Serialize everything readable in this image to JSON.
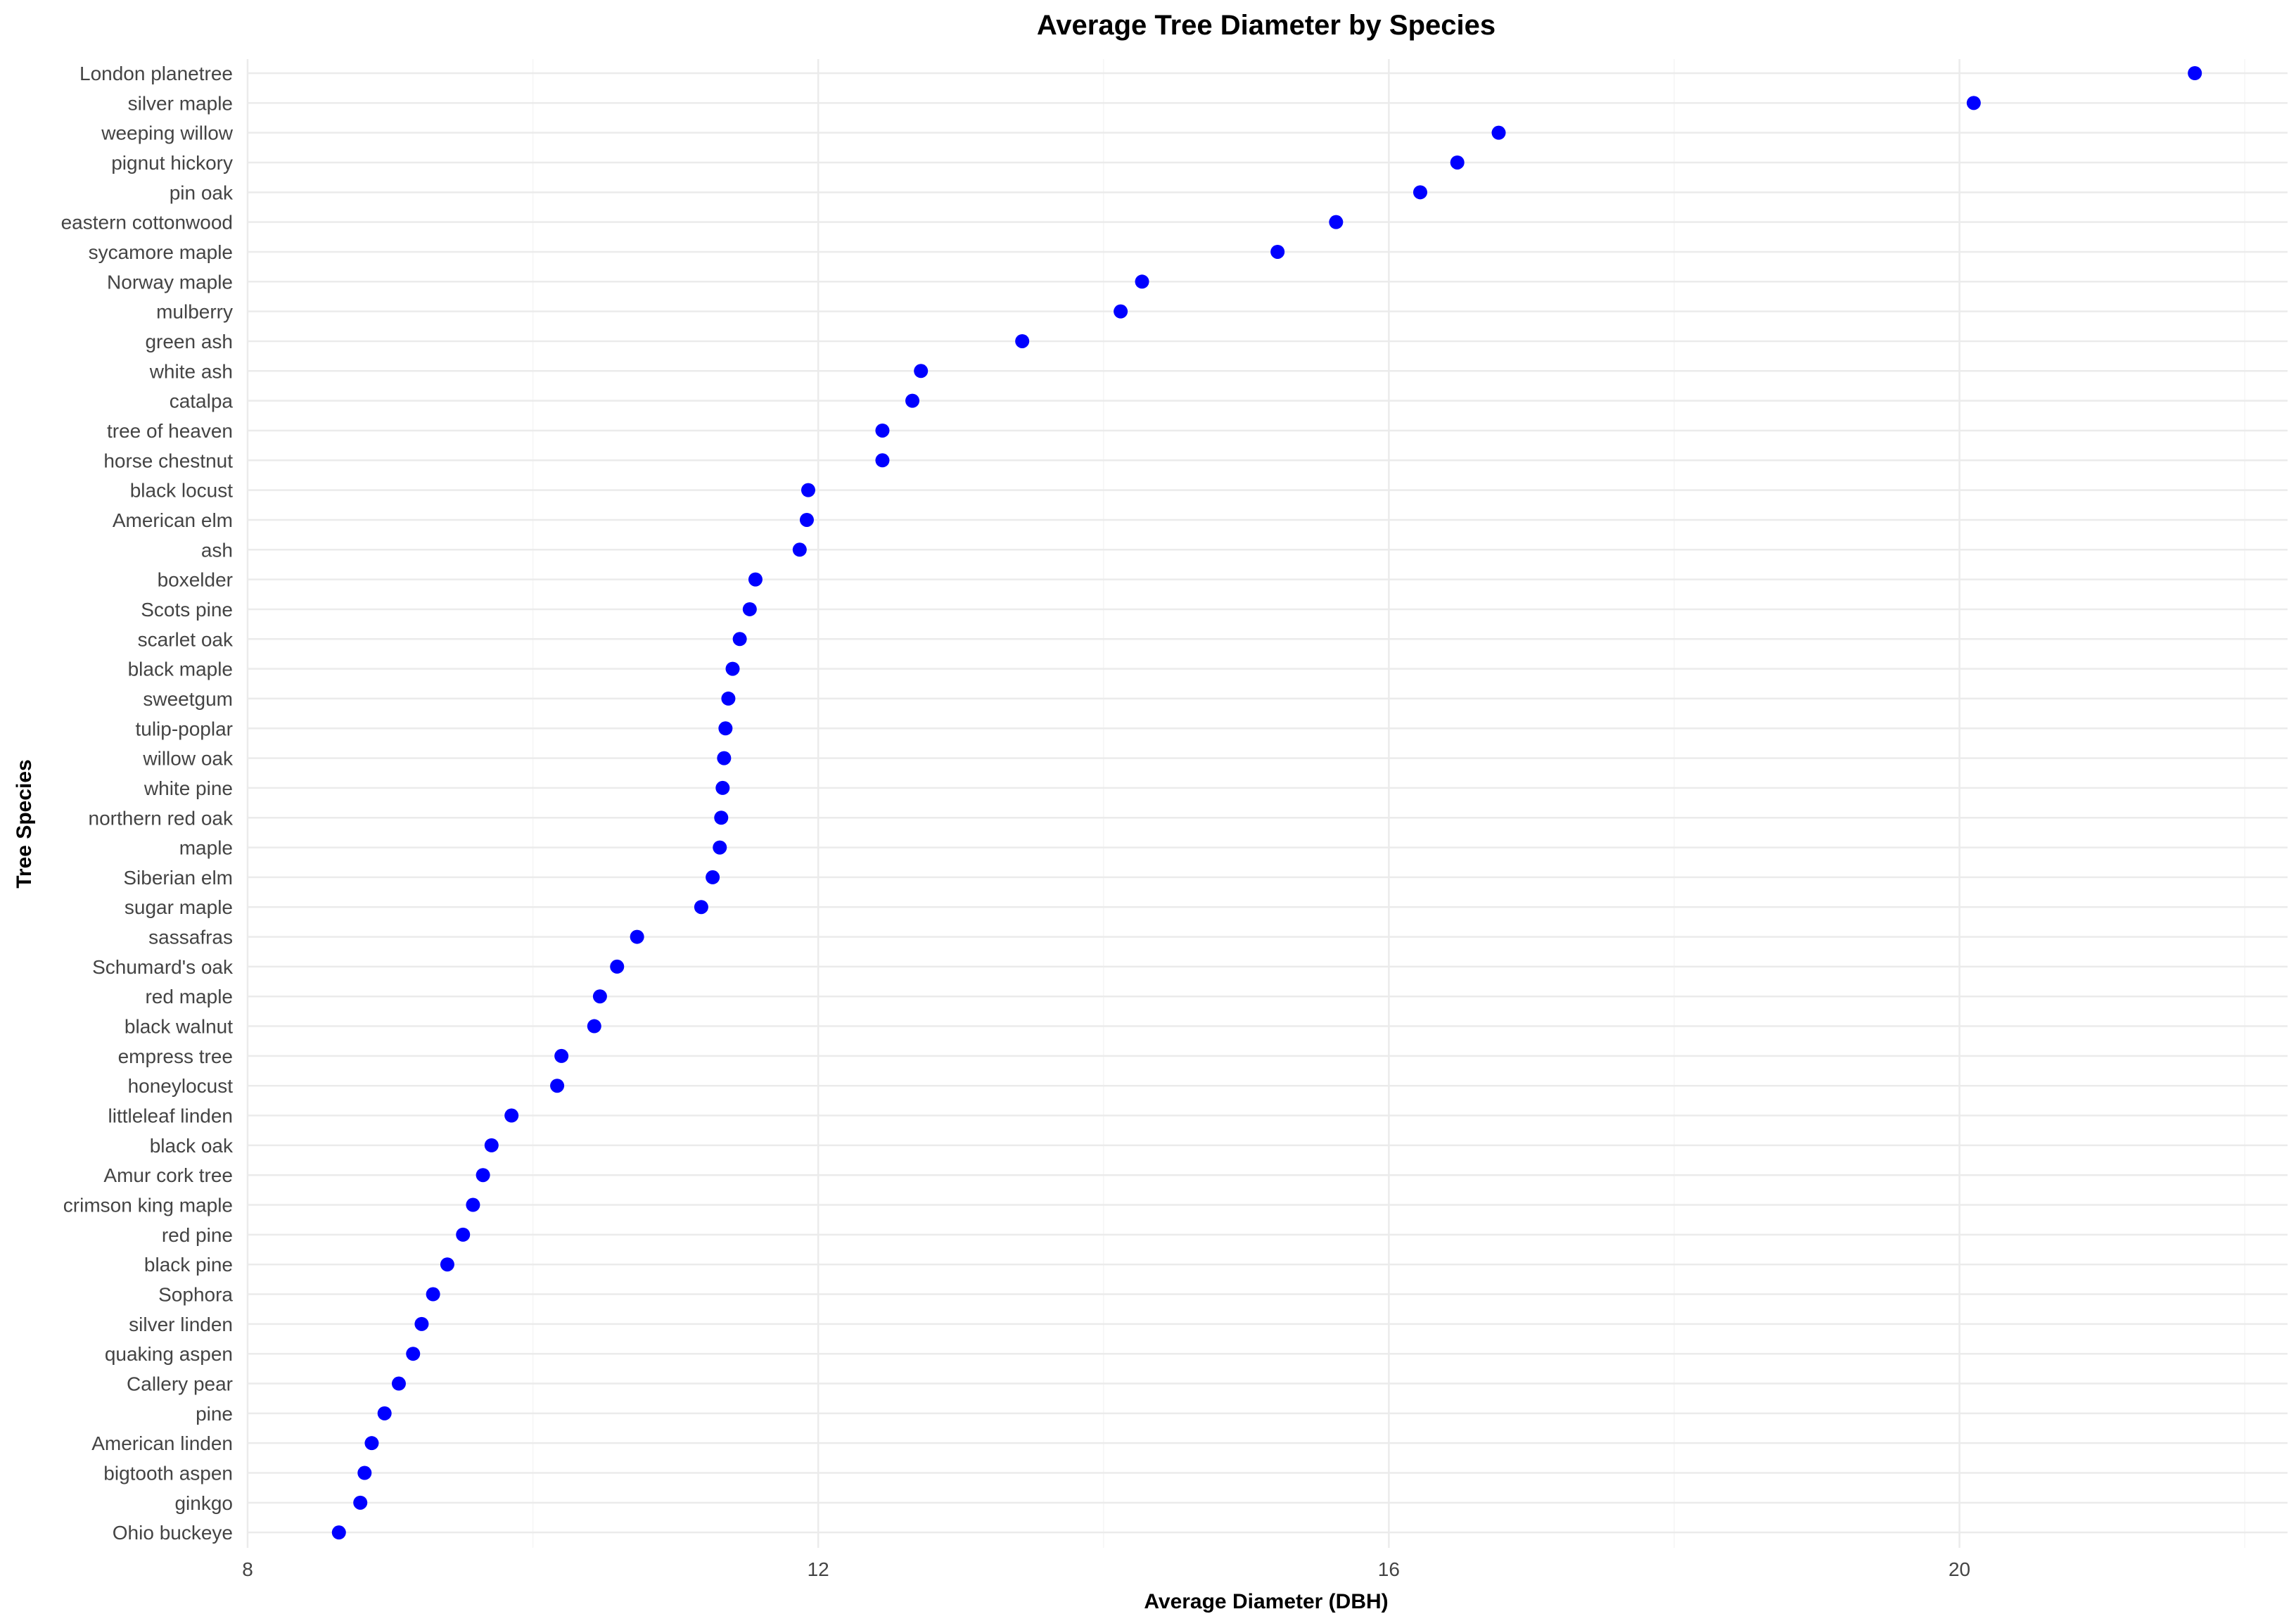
{
  "chart_data": {
    "type": "scatter",
    "title": "Average Tree Diameter by Species",
    "xlabel": "Average Diameter (DBH)",
    "ylabel": "Tree Species",
    "xlim": [
      8,
      22.3
    ],
    "xticks": [
      8,
      12,
      16,
      20
    ],
    "grid": true,
    "legend": "none",
    "point_color": "#0000ff",
    "points": [
      {
        "species": "London planetree",
        "value": 21.65
      },
      {
        "species": "silver maple",
        "value": 20.1
      },
      {
        "species": "weeping willow",
        "value": 16.77
      },
      {
        "species": "pignut hickory",
        "value": 16.48
      },
      {
        "species": "pin oak",
        "value": 16.22
      },
      {
        "species": "eastern cottonwood",
        "value": 15.63
      },
      {
        "species": "sycamore maple",
        "value": 15.22
      },
      {
        "species": "Norway maple",
        "value": 14.27
      },
      {
        "species": "mulberry",
        "value": 14.12
      },
      {
        "species": "green ash",
        "value": 13.43
      },
      {
        "species": "white ash",
        "value": 12.72
      },
      {
        "species": "catalpa",
        "value": 12.66
      },
      {
        "species": "tree of heaven",
        "value": 12.45
      },
      {
        "species": "horse chestnut",
        "value": 12.45
      },
      {
        "species": "black locust",
        "value": 11.93
      },
      {
        "species": "American elm",
        "value": 11.92
      },
      {
        "species": "ash",
        "value": 11.87
      },
      {
        "species": "boxelder",
        "value": 11.56
      },
      {
        "species": "Scots pine",
        "value": 11.52
      },
      {
        "species": "scarlet oak",
        "value": 11.45
      },
      {
        "species": "black maple",
        "value": 11.4
      },
      {
        "species": "sweetgum",
        "value": 11.37
      },
      {
        "species": "tulip-poplar",
        "value": 11.35
      },
      {
        "species": "willow oak",
        "value": 11.34
      },
      {
        "species": "white pine",
        "value": 11.33
      },
      {
        "species": "northern red oak",
        "value": 11.32
      },
      {
        "species": "maple",
        "value": 11.31
      },
      {
        "species": "Siberian elm",
        "value": 11.26
      },
      {
        "species": "sugar maple",
        "value": 11.18
      },
      {
        "species": "sassafras",
        "value": 10.73
      },
      {
        "species": "Schumard's oak",
        "value": 10.59
      },
      {
        "species": "red maple",
        "value": 10.47
      },
      {
        "species": "black walnut",
        "value": 10.43
      },
      {
        "species": "empress tree",
        "value": 10.2
      },
      {
        "species": "honeylocust",
        "value": 10.17
      },
      {
        "species": "littleleaf linden",
        "value": 9.85
      },
      {
        "species": "black oak",
        "value": 9.71
      },
      {
        "species": "Amur cork tree",
        "value": 9.65
      },
      {
        "species": "crimson king maple",
        "value": 9.58
      },
      {
        "species": "red pine",
        "value": 9.51
      },
      {
        "species": "black pine",
        "value": 9.4
      },
      {
        "species": "Sophora",
        "value": 9.3
      },
      {
        "species": "silver linden",
        "value": 9.22
      },
      {
        "species": "quaking aspen",
        "value": 9.16
      },
      {
        "species": "Callery pear",
        "value": 9.06
      },
      {
        "species": "pine",
        "value": 8.96
      },
      {
        "species": "American linden",
        "value": 8.87
      },
      {
        "species": "bigtooth aspen",
        "value": 8.82
      },
      {
        "species": "ginkgo",
        "value": 8.79
      },
      {
        "species": "Ohio buckeye",
        "value": 8.64
      }
    ]
  }
}
